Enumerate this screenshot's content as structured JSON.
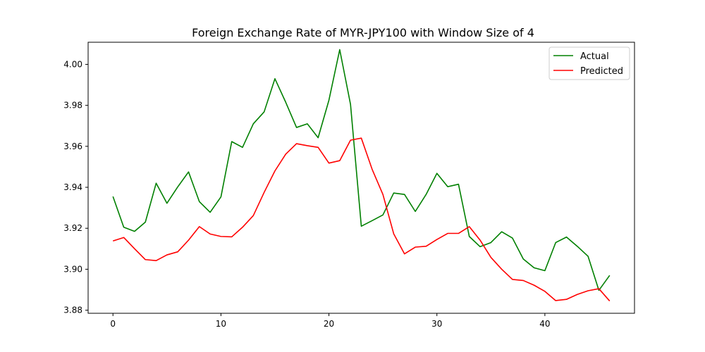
{
  "chart_data": {
    "type": "line",
    "title": "Foreign Exchange Rate of MYR-JPY100 with Window Size of 4",
    "xlabel": "",
    "ylabel": "",
    "xlim": [
      -2.3,
      48.3
    ],
    "ylim": [
      3.8785,
      4.0108
    ],
    "x_ticks": [
      0,
      10,
      20,
      30,
      40
    ],
    "x_tick_labels": [
      "0",
      "10",
      "20",
      "30",
      "40"
    ],
    "y_ticks": [
      3.88,
      3.9,
      3.92,
      3.94,
      3.96,
      3.98,
      4.0
    ],
    "y_tick_labels": [
      "3.88",
      "3.90",
      "3.92",
      "3.94",
      "3.96",
      "3.98",
      "4.00"
    ],
    "grid": false,
    "legend_position": "top-right",
    "x": [
      0,
      1,
      2,
      3,
      4,
      5,
      6,
      7,
      8,
      9,
      10,
      11,
      12,
      13,
      14,
      15,
      16,
      17,
      18,
      19,
      20,
      21,
      22,
      23,
      24,
      25,
      26,
      27,
      28,
      29,
      30,
      31,
      32,
      33,
      34,
      35,
      36,
      37,
      38,
      39,
      40,
      41,
      42,
      43,
      44,
      45,
      46
    ],
    "series": [
      {
        "name": "Actual",
        "color": "#008000",
        "values": [
          3.9355,
          3.9205,
          3.9185,
          3.923,
          3.942,
          3.9322,
          3.9402,
          3.9475,
          3.933,
          3.9278,
          3.9353,
          3.9623,
          3.9595,
          3.971,
          3.9768,
          3.993,
          3.9815,
          3.9692,
          3.971,
          3.9642,
          3.9825,
          4.0072,
          3.9805,
          3.921,
          3.9237,
          3.9265,
          3.9372,
          3.9365,
          3.9282,
          3.9365,
          3.9468,
          3.9403,
          3.9415,
          3.916,
          3.911,
          3.913,
          3.9183,
          3.9152,
          3.905,
          3.9007,
          3.8993,
          3.913,
          3.9157,
          3.9112,
          3.9063,
          3.8897,
          3.897
        ]
      },
      {
        "name": "Predicted",
        "color": "#ff0000",
        "values": [
          3.9138,
          3.9155,
          3.91,
          3.9047,
          3.9042,
          3.907,
          3.9085,
          3.9142,
          3.9208,
          3.9172,
          3.916,
          3.9158,
          3.9205,
          3.9262,
          3.9375,
          3.948,
          3.9562,
          3.9613,
          3.9603,
          3.9595,
          3.9518,
          3.953,
          3.963,
          3.964,
          3.9488,
          3.9365,
          3.9173,
          3.9075,
          3.9108,
          3.9112,
          3.9145,
          3.9175,
          3.9175,
          3.9208,
          3.9142,
          3.9058,
          3.9,
          3.895,
          3.8945,
          3.8922,
          3.8892,
          3.8847,
          3.8853,
          3.8877,
          3.8895,
          3.8905,
          3.8845
        ]
      }
    ]
  }
}
